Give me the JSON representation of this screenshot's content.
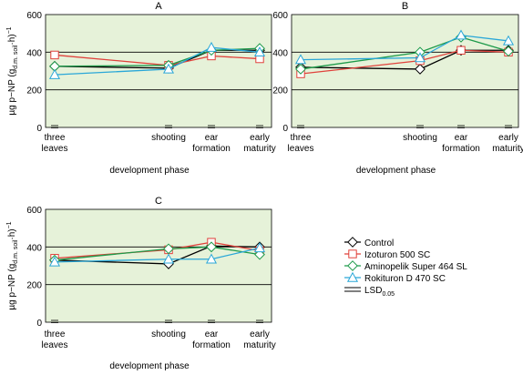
{
  "legend": [
    {
      "key": "control",
      "label": "Control",
      "color": "#000000",
      "marker": "diamond"
    },
    {
      "key": "izoturon",
      "label": "Izoturon 500 SC",
      "color": "#e0413b",
      "marker": "square"
    },
    {
      "key": "aminopelik",
      "label": "Aminopelik Super 464 SL",
      "color": "#1d9a4a",
      "marker": "diamond"
    },
    {
      "key": "rokituron",
      "label": "Rokituron D 470 SC",
      "color": "#2aa7d8",
      "marker": "triangle"
    }
  ],
  "lsd_label": {
    "main": "LSD",
    "sub": "0.05"
  },
  "chart_data": [
    {
      "type": "line",
      "title": "A",
      "categories": [
        "three leaves",
        "shooting",
        "ear formation",
        "early maturity"
      ],
      "xlabel": "development phase",
      "ylabel": "µg p−NP (g d.m. soil·h)−1",
      "ylim": [
        0,
        600
      ],
      "yticks": [
        0,
        200,
        400,
        600
      ],
      "background": "#e6f2d9",
      "series": [
        {
          "name": "Control",
          "values": [
            325,
            315,
            410,
            410
          ]
        },
        {
          "name": "Izoturon 500 SC",
          "values": [
            385,
            330,
            380,
            365
          ]
        },
        {
          "name": "Aminopelik Super 464 SL",
          "values": [
            325,
            330,
            410,
            420
          ]
        },
        {
          "name": "Rokituron D 470 SC",
          "values": [
            280,
            310,
            425,
            400
          ]
        }
      ]
    },
    {
      "type": "line",
      "title": "B",
      "categories": [
        "three leaves",
        "shooting",
        "ear formation",
        "early maturity"
      ],
      "xlabel": "development phase",
      "ylabel": "",
      "ylim": [
        0,
        600
      ],
      "yticks": [
        0,
        200,
        400,
        600
      ],
      "background": "#e6f2d9",
      "series": [
        {
          "name": "Control",
          "values": [
            320,
            310,
            410,
            410
          ]
        },
        {
          "name": "Izoturon 500 SC",
          "values": [
            285,
            355,
            410,
            400
          ]
        },
        {
          "name": "Aminopelik Super 464 SL",
          "values": [
            310,
            400,
            480,
            405
          ]
        },
        {
          "name": "Rokituron D 470 SC",
          "values": [
            360,
            370,
            490,
            460
          ]
        }
      ]
    },
    {
      "type": "line",
      "title": "C",
      "categories": [
        "three leaves",
        "shooting",
        "ear formation",
        "early maturity"
      ],
      "xlabel": "development phase",
      "ylabel": "µg p−NP (g d.m. soil·h)−1",
      "ylim": [
        0,
        600
      ],
      "yticks": [
        0,
        200,
        400,
        600
      ],
      "background": "#e6f2d9",
      "series": [
        {
          "name": "Control",
          "values": [
            330,
            310,
            405,
            400
          ]
        },
        {
          "name": "Izoturon 500 SC",
          "values": [
            340,
            385,
            425,
            380
          ]
        },
        {
          "name": "Aminopelik Super 464 SL",
          "values": [
            330,
            390,
            400,
            360
          ]
        },
        {
          "name": "Rokituron D 470 SC",
          "values": [
            320,
            335,
            335,
            395
          ]
        }
      ]
    }
  ]
}
